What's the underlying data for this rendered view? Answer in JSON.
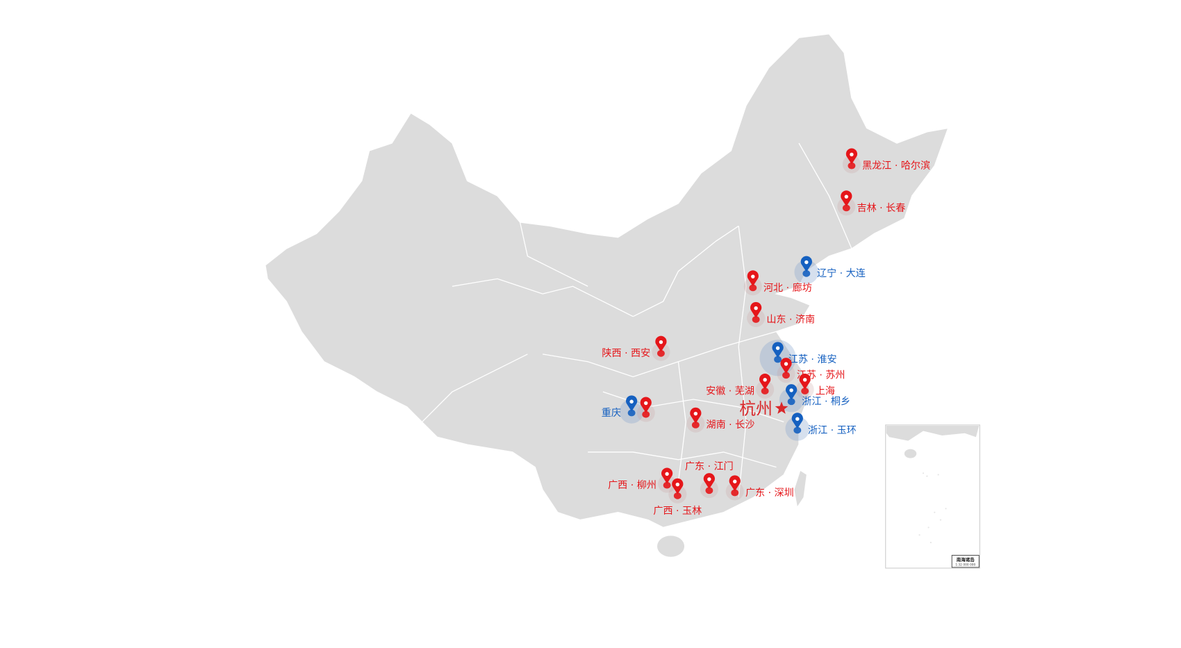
{
  "colors": {
    "land": "#dcdcdc",
    "border": "#ffffff",
    "red": "#e5161a",
    "blue": "#1560c0",
    "star": "#d9272a"
  },
  "capital": {
    "label": "杭州",
    "icon": "star-icon"
  },
  "markers": [
    {
      "label": "黑龙江 · 哈尔滨",
      "type": "red"
    },
    {
      "label": "吉林 · 长春",
      "type": "red"
    },
    {
      "label": "辽宁 · 大连",
      "type": "blue"
    },
    {
      "label": "河北 · 廊坊",
      "type": "red"
    },
    {
      "label": "山东 · 济南",
      "type": "red"
    },
    {
      "label": "陕西 · 西安",
      "type": "red"
    },
    {
      "label": "江苏 · 淮安",
      "type": "blue"
    },
    {
      "label": "江苏 · 苏州",
      "type": "red"
    },
    {
      "label": "安徽 · 芜湖",
      "type": "red"
    },
    {
      "label": "上海",
      "type": "red"
    },
    {
      "label": "浙江 · 桐乡",
      "type": "blue"
    },
    {
      "label": "重庆",
      "type": "blue"
    },
    {
      "label": "",
      "type": "red"
    },
    {
      "label": "湖南 · 长沙",
      "type": "red"
    },
    {
      "label": "浙江 · 玉环",
      "type": "blue"
    },
    {
      "label": "广东 · 江门",
      "type": "red"
    },
    {
      "label": "广西 · 柳州",
      "type": "red"
    },
    {
      "label": "广西 · 玉林",
      "type": "red"
    },
    {
      "label": "广东 · 深圳",
      "type": "red"
    }
  ],
  "inset": {
    "title": "南海诸岛",
    "scale": "1:32 000 000"
  }
}
